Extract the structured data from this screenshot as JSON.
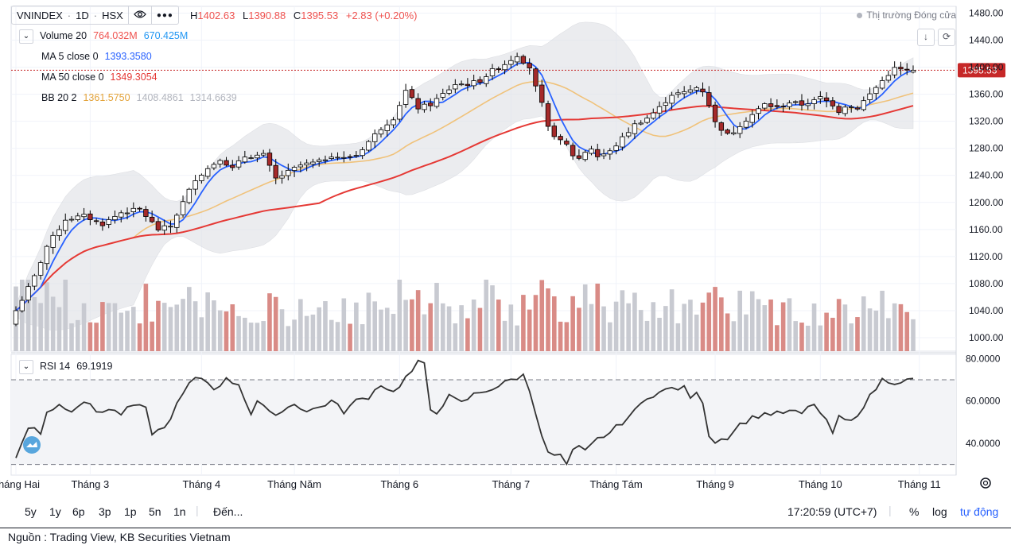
{
  "header": {
    "symbol": "VNINDEX",
    "interval": "1D",
    "exchange": "HSX",
    "ohlc": {
      "h_label": "H",
      "h": "1402.63",
      "l_label": "L",
      "l": "1390.88",
      "c_label": "C",
      "c": "1395.53",
      "change": "+2.83 (+0.20%)"
    },
    "market_status": "Thị trường Đóng cửa"
  },
  "legend": {
    "volume": {
      "name": "Volume 20",
      "v1": "764.032M",
      "v2": "670.425M"
    },
    "ma5": {
      "name": "MA 5 close 0",
      "value": "1393.3580"
    },
    "ma50": {
      "name": "MA 50 close 0",
      "value": "1349.3054"
    },
    "bb": {
      "name": "BB 20 2",
      "basis": "1361.5750",
      "upper": "1408.4861",
      "lower": "1314.6639"
    }
  },
  "rsi_legend": {
    "name": "RSI 14",
    "value": "69.1919"
  },
  "colors": {
    "up": "#ffffff",
    "down": "#a52a2a",
    "ma5": "#2962ff",
    "ma50": "#e53935",
    "bb_basis": "#f0c27a",
    "bb_band": "#dfe1e6",
    "rsi": "#333333",
    "vol_up": "#c8cad1",
    "vol_down": "#d98b86",
    "last_price": "#c62828"
  },
  "chart_data": [
    {
      "type": "candlestick",
      "title": "VNINDEX · 1D · HSX",
      "last_price": 1395.53,
      "ylim": [
        980,
        1490
      ],
      "yticks": [
        "1480.00",
        "1440.00",
        "1400.00",
        "1360.00",
        "1320.00",
        "1280.00",
        "1240.00",
        "1200.00",
        "1160.00",
        "1120.00",
        "1080.00",
        "1040.00",
        "1000.00"
      ],
      "ytick_values": [
        1480,
        1440,
        1400,
        1360,
        1320,
        1280,
        1240,
        1200,
        1160,
        1120,
        1080,
        1040,
        1000
      ],
      "xticks": [
        "Tháng Hai",
        "Tháng 3",
        "Tháng 4",
        "Tháng Năm",
        "Tháng 6",
        "Tháng 7",
        "Tháng Tám",
        "Tháng 9",
        "Tháng 10",
        "Tháng 11"
      ],
      "xtick_bar_index": [
        0,
        12,
        30,
        45,
        62,
        80,
        97,
        113,
        130,
        146
      ],
      "close_keypoints": [
        [
          0,
          1040
        ],
        [
          3,
          1090
        ],
        [
          5,
          1135
        ],
        [
          8,
          1175
        ],
        [
          11,
          1180
        ],
        [
          14,
          1168
        ],
        [
          17,
          1185
        ],
        [
          20,
          1190
        ],
        [
          23,
          1160
        ],
        [
          25,
          1165
        ],
        [
          27,
          1200
        ],
        [
          29,
          1235
        ],
        [
          31,
          1250
        ],
        [
          33,
          1265
        ],
        [
          35,
          1250
        ],
        [
          37,
          1268
        ],
        [
          40,
          1270
        ],
        [
          42,
          1235
        ],
        [
          44,
          1245
        ],
        [
          46,
          1255
        ],
        [
          49,
          1260
        ],
        [
          51,
          1270
        ],
        [
          53,
          1265
        ],
        [
          55,
          1270
        ],
        [
          57,
          1290
        ],
        [
          59,
          1310
        ],
        [
          61,
          1325
        ],
        [
          63,
          1365
        ],
        [
          65,
          1340
        ],
        [
          67,
          1345
        ],
        [
          69,
          1360
        ],
        [
          71,
          1375
        ],
        [
          73,
          1375
        ],
        [
          75,
          1380
        ],
        [
          77,
          1395
        ],
        [
          79,
          1405
        ],
        [
          81,
          1418
        ],
        [
          83,
          1400
        ],
        [
          84,
          1370
        ],
        [
          85,
          1345
        ],
        [
          86,
          1310
        ],
        [
          88,
          1290
        ],
        [
          89,
          1285
        ],
        [
          90,
          1270
        ],
        [
          91,
          1265
        ],
        [
          92,
          1275
        ],
        [
          93,
          1280
        ],
        [
          94,
          1268
        ],
        [
          96,
          1275
        ],
        [
          98,
          1295
        ],
        [
          100,
          1315
        ],
        [
          102,
          1325
        ],
        [
          104,
          1340
        ],
        [
          106,
          1360
        ],
        [
          108,
          1362
        ],
        [
          110,
          1370
        ],
        [
          111,
          1365
        ],
        [
          112,
          1345
        ],
        [
          113,
          1318
        ],
        [
          115,
          1300
        ],
        [
          116,
          1305
        ],
        [
          117,
          1315
        ],
        [
          119,
          1330
        ],
        [
          121,
          1345
        ],
        [
          123,
          1340
        ],
        [
          125,
          1348
        ],
        [
          127,
          1345
        ],
        [
          129,
          1350
        ],
        [
          130,
          1355
        ],
        [
          131,
          1350
        ],
        [
          132,
          1345
        ],
        [
          133,
          1335
        ],
        [
          134,
          1343
        ],
        [
          136,
          1340
        ],
        [
          137,
          1350
        ],
        [
          139,
          1370
        ],
        [
          141,
          1390
        ],
        [
          142,
          1398
        ],
        [
          144,
          1395
        ],
        [
          145,
          1395
        ]
      ],
      "ma5_close": 1393.358,
      "ma50_close": 1349.3054,
      "bollinger": {
        "period": 20,
        "mult": 2,
        "basis": 1361.575,
        "upper": 1408.4861,
        "lower": 1314.6639
      }
    },
    {
      "type": "bar",
      "title": "Volume 20",
      "values_millions": {
        "last": 764.032,
        "ma20": 670.425
      }
    },
    {
      "type": "line",
      "title": "RSI 14",
      "ylim": [
        25,
        82
      ],
      "yticks": [
        "80.0000",
        "60.0000",
        "40.0000"
      ],
      "ytick_values": [
        80,
        60,
        40
      ],
      "bands": [
        70,
        30
      ],
      "rsi_keypoints": [
        [
          0,
          33
        ],
        [
          2,
          47
        ],
        [
          3,
          48
        ],
        [
          4,
          45
        ],
        [
          5,
          55
        ],
        [
          7,
          58
        ],
        [
          9,
          56
        ],
        [
          11,
          60
        ],
        [
          13,
          55
        ],
        [
          15,
          56
        ],
        [
          17,
          54
        ],
        [
          19,
          58
        ],
        [
          21,
          56
        ],
        [
          22,
          45
        ],
        [
          24,
          47
        ],
        [
          26,
          58
        ],
        [
          28,
          68
        ],
        [
          29,
          70
        ],
        [
          30,
          71
        ],
        [
          32,
          66
        ],
        [
          34,
          70
        ],
        [
          36,
          68
        ],
        [
          38,
          54
        ],
        [
          39,
          60
        ],
        [
          41,
          54
        ],
        [
          43,
          55
        ],
        [
          45,
          59
        ],
        [
          47,
          55
        ],
        [
          49,
          57
        ],
        [
          51,
          60
        ],
        [
          53,
          55
        ],
        [
          55,
          60
        ],
        [
          57,
          62
        ],
        [
          59,
          68
        ],
        [
          61,
          64
        ],
        [
          63,
          71
        ],
        [
          64,
          74
        ],
        [
          65,
          78
        ],
        [
          66,
          77
        ],
        [
          67,
          56
        ],
        [
          68,
          55
        ],
        [
          70,
          62
        ],
        [
          72,
          59
        ],
        [
          74,
          63
        ],
        [
          76,
          65
        ],
        [
          78,
          67
        ],
        [
          80,
          70
        ],
        [
          81,
          71
        ],
        [
          82,
          72
        ],
        [
          83,
          65
        ],
        [
          84,
          55
        ],
        [
          85,
          44
        ],
        [
          86,
          35
        ],
        [
          88,
          34
        ],
        [
          89,
          30
        ],
        [
          90,
          36
        ],
        [
          91,
          38
        ],
        [
          92,
          36
        ],
        [
          94,
          42
        ],
        [
          96,
          45
        ],
        [
          98,
          50
        ],
        [
          100,
          55
        ],
        [
          102,
          62
        ],
        [
          104,
          64
        ],
        [
          106,
          66
        ],
        [
          108,
          66
        ],
        [
          109,
          62
        ],
        [
          110,
          63
        ],
        [
          111,
          60
        ],
        [
          112,
          44
        ],
        [
          113,
          41
        ],
        [
          115,
          43
        ],
        [
          117,
          49
        ],
        [
          119,
          52
        ],
        [
          121,
          54
        ],
        [
          123,
          54
        ],
        [
          125,
          55
        ],
        [
          127,
          54
        ],
        [
          129,
          59
        ],
        [
          130,
          54
        ],
        [
          131,
          50
        ],
        [
          132,
          45
        ],
        [
          133,
          52
        ],
        [
          135,
          50
        ],
        [
          137,
          58
        ],
        [
          139,
          66
        ],
        [
          140,
          70
        ],
        [
          142,
          69
        ],
        [
          145,
          70
        ]
      ]
    }
  ],
  "bottombar": {
    "ranges": [
      "5y",
      "1y",
      "6p",
      "3p",
      "1p",
      "5n",
      "1n"
    ],
    "goto": "Đến...",
    "clock": "17:20:59 (UTC+7)",
    "percent": "%",
    "log": "log",
    "auto": "tự động"
  },
  "source": "Nguồn : Trading View, KB Securities Vietnam"
}
